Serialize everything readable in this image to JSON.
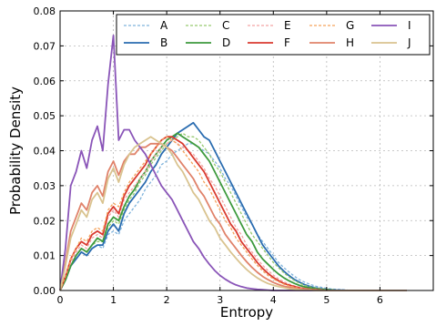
{
  "chart_data": {
    "type": "line",
    "xlabel": "Entropy",
    "ylabel": "Probability Density",
    "xlim": [
      0,
      7
    ],
    "ylim": [
      0,
      0.08
    ],
    "x_ticks": [
      "0",
      "1",
      "2",
      "3",
      "4",
      "5",
      "6"
    ],
    "y_ticks": [
      "0.00",
      "0.01",
      "0.02",
      "0.03",
      "0.04",
      "0.05",
      "0.06",
      "0.07",
      "0.08"
    ],
    "grid": true,
    "legend_position": "top",
    "x": [
      0,
      0.1,
      0.2,
      0.3,
      0.4,
      0.5,
      0.6,
      0.7,
      0.8,
      0.9,
      1.0,
      1.1,
      1.2,
      1.3,
      1.4,
      1.5,
      1.6,
      1.7,
      1.8,
      1.9,
      2.0,
      2.1,
      2.2,
      2.3,
      2.4,
      2.5,
      2.6,
      2.7,
      2.8,
      2.9,
      3.0,
      3.1,
      3.2,
      3.3,
      3.4,
      3.5,
      3.6,
      3.7,
      3.8,
      3.9,
      4.0,
      4.1,
      4.2,
      4.3,
      4.4,
      4.5,
      4.6,
      4.7,
      4.8,
      4.9,
      5.0,
      5.1,
      5.2,
      5.3,
      5.4,
      5.5,
      5.6,
      5.7,
      5.8,
      5.9,
      6.0,
      6.1,
      6.2,
      6.3,
      6.4,
      6.5
    ],
    "series": [
      {
        "name": "A",
        "color": "#7fb3dc",
        "dashed": true,
        "values": [
          0,
          0.003,
          0.007,
          0.009,
          0.011,
          0.01,
          0.012,
          0.013,
          0.012,
          0.016,
          0.017,
          0.016,
          0.02,
          0.022,
          0.024,
          0.026,
          0.029,
          0.031,
          0.033,
          0.036,
          0.037,
          0.039,
          0.04,
          0.041,
          0.042,
          0.042,
          0.041,
          0.04,
          0.039,
          0.037,
          0.035,
          0.032,
          0.03,
          0.027,
          0.024,
          0.021,
          0.019,
          0.016,
          0.014,
          0.012,
          0.01,
          0.008,
          0.0065,
          0.0052,
          0.004,
          0.003,
          0.0023,
          0.0017,
          0.0012,
          0.0009,
          0.0006,
          0.0004,
          0.0003,
          0.0002,
          0.0001,
          0.0001,
          0,
          0,
          0,
          0,
          0,
          0,
          0,
          0,
          0,
          0
        ]
      },
      {
        "name": "B",
        "color": "#2a6cb0",
        "dashed": false,
        "values": [
          0,
          0.003,
          0.007,
          0.009,
          0.011,
          0.01,
          0.012,
          0.013,
          0.013,
          0.017,
          0.019,
          0.017,
          0.022,
          0.025,
          0.027,
          0.029,
          0.031,
          0.034,
          0.036,
          0.039,
          0.041,
          0.043,
          0.045,
          0.046,
          0.047,
          0.048,
          0.046,
          0.044,
          0.043,
          0.04,
          0.037,
          0.034,
          0.031,
          0.028,
          0.025,
          0.022,
          0.019,
          0.016,
          0.013,
          0.011,
          0.009,
          0.007,
          0.0055,
          0.0042,
          0.0031,
          0.0023,
          0.0016,
          0.0011,
          0.0007,
          0.0005,
          0.0003,
          0.0002,
          0.0001,
          0.0001,
          0,
          0,
          0,
          0,
          0,
          0,
          0,
          0,
          0,
          0,
          0,
          0
        ]
      },
      {
        "name": "C",
        "color": "#96c96f",
        "dashed": true,
        "values": [
          0,
          0.003,
          0.007,
          0.01,
          0.012,
          0.011,
          0.013,
          0.014,
          0.014,
          0.018,
          0.02,
          0.019,
          0.023,
          0.026,
          0.028,
          0.031,
          0.033,
          0.036,
          0.038,
          0.04,
          0.042,
          0.043,
          0.044,
          0.045,
          0.044,
          0.044,
          0.043,
          0.041,
          0.039,
          0.036,
          0.034,
          0.031,
          0.028,
          0.025,
          0.022,
          0.019,
          0.016,
          0.014,
          0.012,
          0.01,
          0.008,
          0.0065,
          0.005,
          0.0038,
          0.0028,
          0.002,
          0.0014,
          0.001,
          0.0007,
          0.0005,
          0.0003,
          0.0002,
          0.0001,
          0,
          0,
          0,
          0,
          0,
          0,
          0,
          0,
          0,
          0,
          0,
          0,
          0
        ]
      },
      {
        "name": "D",
        "color": "#3d9a3d",
        "dashed": false,
        "values": [
          0,
          0.003,
          0.007,
          0.01,
          0.012,
          0.011,
          0.013,
          0.015,
          0.014,
          0.019,
          0.021,
          0.02,
          0.024,
          0.027,
          0.029,
          0.032,
          0.034,
          0.037,
          0.039,
          0.041,
          0.043,
          0.044,
          0.045,
          0.044,
          0.043,
          0.042,
          0.041,
          0.039,
          0.037,
          0.034,
          0.031,
          0.028,
          0.025,
          0.022,
          0.019,
          0.016,
          0.014,
          0.011,
          0.009,
          0.0075,
          0.006,
          0.0047,
          0.0036,
          0.0027,
          0.002,
          0.0014,
          0.001,
          0.0007,
          0.0005,
          0.0003,
          0.0002,
          0.0001,
          0,
          0,
          0,
          0,
          0,
          0,
          0,
          0,
          0,
          0,
          0,
          0,
          0,
          0
        ]
      },
      {
        "name": "E",
        "color": "#f3a3a3",
        "dashed": true,
        "values": [
          0,
          0.004,
          0.008,
          0.011,
          0.013,
          0.012,
          0.015,
          0.016,
          0.015,
          0.021,
          0.023,
          0.021,
          0.026,
          0.028,
          0.03,
          0.032,
          0.034,
          0.037,
          0.039,
          0.041,
          0.042,
          0.043,
          0.042,
          0.041,
          0.04,
          0.039,
          0.037,
          0.035,
          0.032,
          0.03,
          0.027,
          0.024,
          0.021,
          0.018,
          0.016,
          0.013,
          0.011,
          0.009,
          0.0072,
          0.0057,
          0.0044,
          0.0033,
          0.0025,
          0.0018,
          0.0013,
          0.0009,
          0.0006,
          0.0004,
          0.0003,
          0.0002,
          0.0001,
          0,
          0,
          0,
          0,
          0,
          0,
          0,
          0,
          0,
          0,
          0,
          0,
          0,
          0,
          0
        ]
      },
      {
        "name": "F",
        "color": "#d93a2f",
        "dashed": false,
        "values": [
          0,
          0.004,
          0.009,
          0.012,
          0.014,
          0.013,
          0.016,
          0.017,
          0.016,
          0.022,
          0.024,
          0.022,
          0.027,
          0.03,
          0.032,
          0.034,
          0.036,
          0.039,
          0.041,
          0.043,
          0.044,
          0.044,
          0.043,
          0.042,
          0.04,
          0.038,
          0.036,
          0.034,
          0.031,
          0.028,
          0.025,
          0.022,
          0.019,
          0.017,
          0.014,
          0.012,
          0.01,
          0.008,
          0.0063,
          0.0049,
          0.0037,
          0.0028,
          0.002,
          0.0015,
          0.0011,
          0.0007,
          0.0005,
          0.0003,
          0.0002,
          0.0001,
          0,
          0,
          0,
          0,
          0,
          0,
          0,
          0,
          0,
          0,
          0,
          0,
          0,
          0,
          0,
          0
        ]
      },
      {
        "name": "G",
        "color": "#f5a25a",
        "dashed": true,
        "values": [
          0,
          0.004,
          0.009,
          0.012,
          0.015,
          0.014,
          0.017,
          0.018,
          0.017,
          0.023,
          0.025,
          0.024,
          0.028,
          0.031,
          0.033,
          0.035,
          0.037,
          0.039,
          0.041,
          0.043,
          0.044,
          0.043,
          0.042,
          0.04,
          0.038,
          0.036,
          0.034,
          0.031,
          0.029,
          0.026,
          0.023,
          0.02,
          0.018,
          0.015,
          0.013,
          0.011,
          0.009,
          0.0072,
          0.0056,
          0.0043,
          0.0033,
          0.0025,
          0.0018,
          0.0013,
          0.0009,
          0.0006,
          0.0004,
          0.0003,
          0.0002,
          0.0001,
          0,
          0,
          0,
          0,
          0,
          0,
          0,
          0,
          0,
          0,
          0,
          0,
          0,
          0,
          0,
          0
        ]
      },
      {
        "name": "H",
        "color": "#e0826a",
        "dashed": false,
        "values": [
          0,
          0.008,
          0.017,
          0.021,
          0.025,
          0.023,
          0.028,
          0.03,
          0.027,
          0.034,
          0.037,
          0.033,
          0.037,
          0.039,
          0.039,
          0.041,
          0.041,
          0.042,
          0.042,
          0.042,
          0.041,
          0.04,
          0.038,
          0.036,
          0.034,
          0.032,
          0.029,
          0.027,
          0.024,
          0.021,
          0.019,
          0.016,
          0.014,
          0.012,
          0.01,
          0.0082,
          0.0066,
          0.0052,
          0.004,
          0.0031,
          0.0023,
          0.0017,
          0.0012,
          0.0009,
          0.0006,
          0.0004,
          0.0003,
          0.0002,
          0.0001,
          0,
          0,
          0,
          0,
          0,
          0,
          0,
          0,
          0,
          0,
          0,
          0,
          0,
          0,
          0,
          0,
          0
        ]
      },
      {
        "name": "I",
        "color": "#8a55b8",
        "dashed": false,
        "values": [
          0,
          0.012,
          0.03,
          0.034,
          0.04,
          0.035,
          0.043,
          0.047,
          0.04,
          0.059,
          0.073,
          0.043,
          0.046,
          0.046,
          0.043,
          0.041,
          0.039,
          0.036,
          0.033,
          0.03,
          0.028,
          0.026,
          0.023,
          0.02,
          0.017,
          0.014,
          0.012,
          0.0095,
          0.0075,
          0.0057,
          0.0043,
          0.0032,
          0.0023,
          0.0016,
          0.0011,
          0.0007,
          0.0005,
          0.0003,
          0.0002,
          0.0001,
          0,
          0,
          0,
          0,
          0,
          0,
          0,
          0,
          0,
          0,
          0,
          0,
          0,
          0,
          0,
          0,
          0,
          0,
          0,
          0,
          0,
          0,
          0,
          0,
          0,
          0
        ]
      },
      {
        "name": "J",
        "color": "#d9c38f",
        "dashed": false,
        "values": [
          0,
          0.007,
          0.015,
          0.019,
          0.023,
          0.021,
          0.026,
          0.028,
          0.025,
          0.032,
          0.035,
          0.031,
          0.036,
          0.039,
          0.041,
          0.042,
          0.043,
          0.044,
          0.043,
          0.042,
          0.041,
          0.039,
          0.036,
          0.034,
          0.031,
          0.028,
          0.026,
          0.023,
          0.02,
          0.018,
          0.015,
          0.013,
          0.011,
          0.0092,
          0.0075,
          0.006,
          0.0047,
          0.0036,
          0.0027,
          0.002,
          0.0015,
          0.0011,
          0.0008,
          0.0005,
          0.0004,
          0.0002,
          0.0001,
          0.0001,
          0,
          0,
          0,
          0,
          0,
          0,
          0,
          0,
          0,
          0,
          0,
          0,
          0,
          0,
          0,
          0,
          0,
          0
        ]
      }
    ]
  }
}
